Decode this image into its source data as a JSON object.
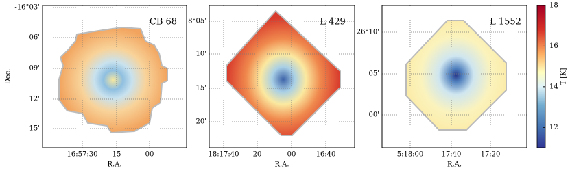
{
  "chart_data": [
    {
      "type": "map",
      "title": "CB 68",
      "xlabel": "R.A.",
      "ylabel": "Dec.",
      "xtick_labels": [
        "16:57:30",
        "15",
        "00"
      ],
      "ytick_labels": [
        "-16°03'",
        "06'",
        "09'",
        "12'",
        "15'"
      ]
    },
    {
      "type": "map",
      "title": "L 429",
      "xlabel": "R.A.",
      "xtick_labels": [
        "18:17:40",
        "20",
        "00",
        "16:40"
      ],
      "ytick_labels": [
        "-8°05'",
        "10'",
        "15'",
        "20'"
      ]
    },
    {
      "type": "map",
      "title": "L 1552",
      "xlabel": "R.A.",
      "xtick_labels": [
        "5:18:00",
        "17:40",
        "17:20"
      ],
      "ytick_labels": [
        "26°10'",
        "05'",
        "00'"
      ]
    },
    {
      "type": "colorbar",
      "ylabel": "T [K]",
      "ylim": [
        11,
        18
      ],
      "yticks": [
        12,
        14,
        16,
        18
      ]
    }
  ]
}
